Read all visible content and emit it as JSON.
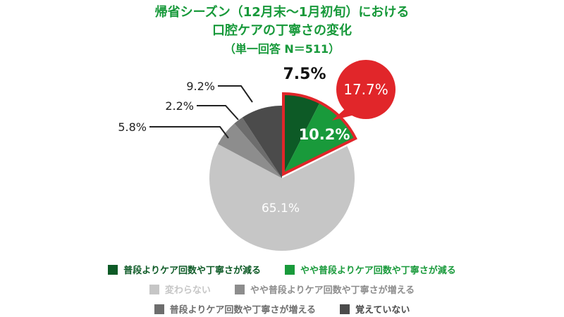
{
  "header": {
    "line1": "帰省シーズン（12月末〜1月初旬）における",
    "line2": "口腔ケアの丁寧さの変化",
    "line3": "（単一回答 N＝511）"
  },
  "chart_data": {
    "type": "pie",
    "categories": [
      "普段よりケア回数や丁寧さが減る",
      "やや普段よりケア回数や丁寧さが減る",
      "変わらない",
      "やや普段よりケア回数や丁寧さが増える",
      "普段よりケア回数や丁寧さが増える",
      "覚えていない"
    ],
    "values": [
      7.5,
      10.2,
      65.1,
      5.8,
      2.2,
      9.2
    ],
    "labels": [
      "7.5%",
      "10.2%",
      "65.1%",
      "5.8%",
      "2.2%",
      "9.2%"
    ],
    "colors": [
      "#0d5a26",
      "#199a3b",
      "#c6c6c6",
      "#8d8d8d",
      "#6d6d6d",
      "#4b4b4b"
    ],
    "callout": {
      "label": "17.7%",
      "value": 17.7,
      "color": "#e1262a"
    },
    "legend_colors": [
      "#0d5a26",
      "#199a3b",
      "#c6c6c6",
      "#8d8d8d",
      "#6d6d6d",
      "#4b4b4b"
    ],
    "legend_text_colors": [
      "#0d5a26",
      "#199a3b",
      "#c6c6c6",
      "#8d8d8d",
      "#6d6d6d",
      "#4b4b4b"
    ]
  }
}
